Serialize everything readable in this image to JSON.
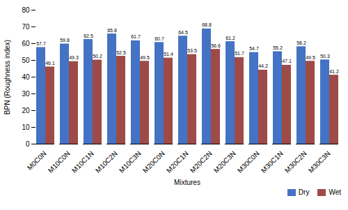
{
  "chart_data": {
    "type": "bar",
    "categories": [
      "M0C0N",
      "M10C0N",
      "M10C1N",
      "M10C2N",
      "M10C3N",
      "M20C0N",
      "M20C1N",
      "M20C2N",
      "M20C3N",
      "M30C0N",
      "M30C1N",
      "M30C2N",
      "M30C3N"
    ],
    "series": [
      {
        "name": "Dry",
        "color": "#4472C4",
        "values": [
          57.7,
          59.8,
          62.5,
          65.8,
          61.7,
          60.7,
          64.5,
          68.8,
          61.2,
          54.7,
          55.2,
          58.2,
          50.3
        ]
      },
      {
        "name": "Wet",
        "color": "#9E4B48",
        "values": [
          46.1,
          49.3,
          50.2,
          52.5,
          49.5,
          51.4,
          53.5,
          56.6,
          51.7,
          44.2,
          47.1,
          49.5,
          41.2
        ]
      }
    ],
    "xlabel": "Mixtures",
    "ylabel": "BPN (Roughness index)",
    "ylim": [
      0,
      80
    ],
    "yticks": [
      0,
      10,
      20,
      30,
      40,
      50,
      60,
      70,
      80
    ],
    "grid": false,
    "legend": "lower right",
    "data_labels": true
  }
}
